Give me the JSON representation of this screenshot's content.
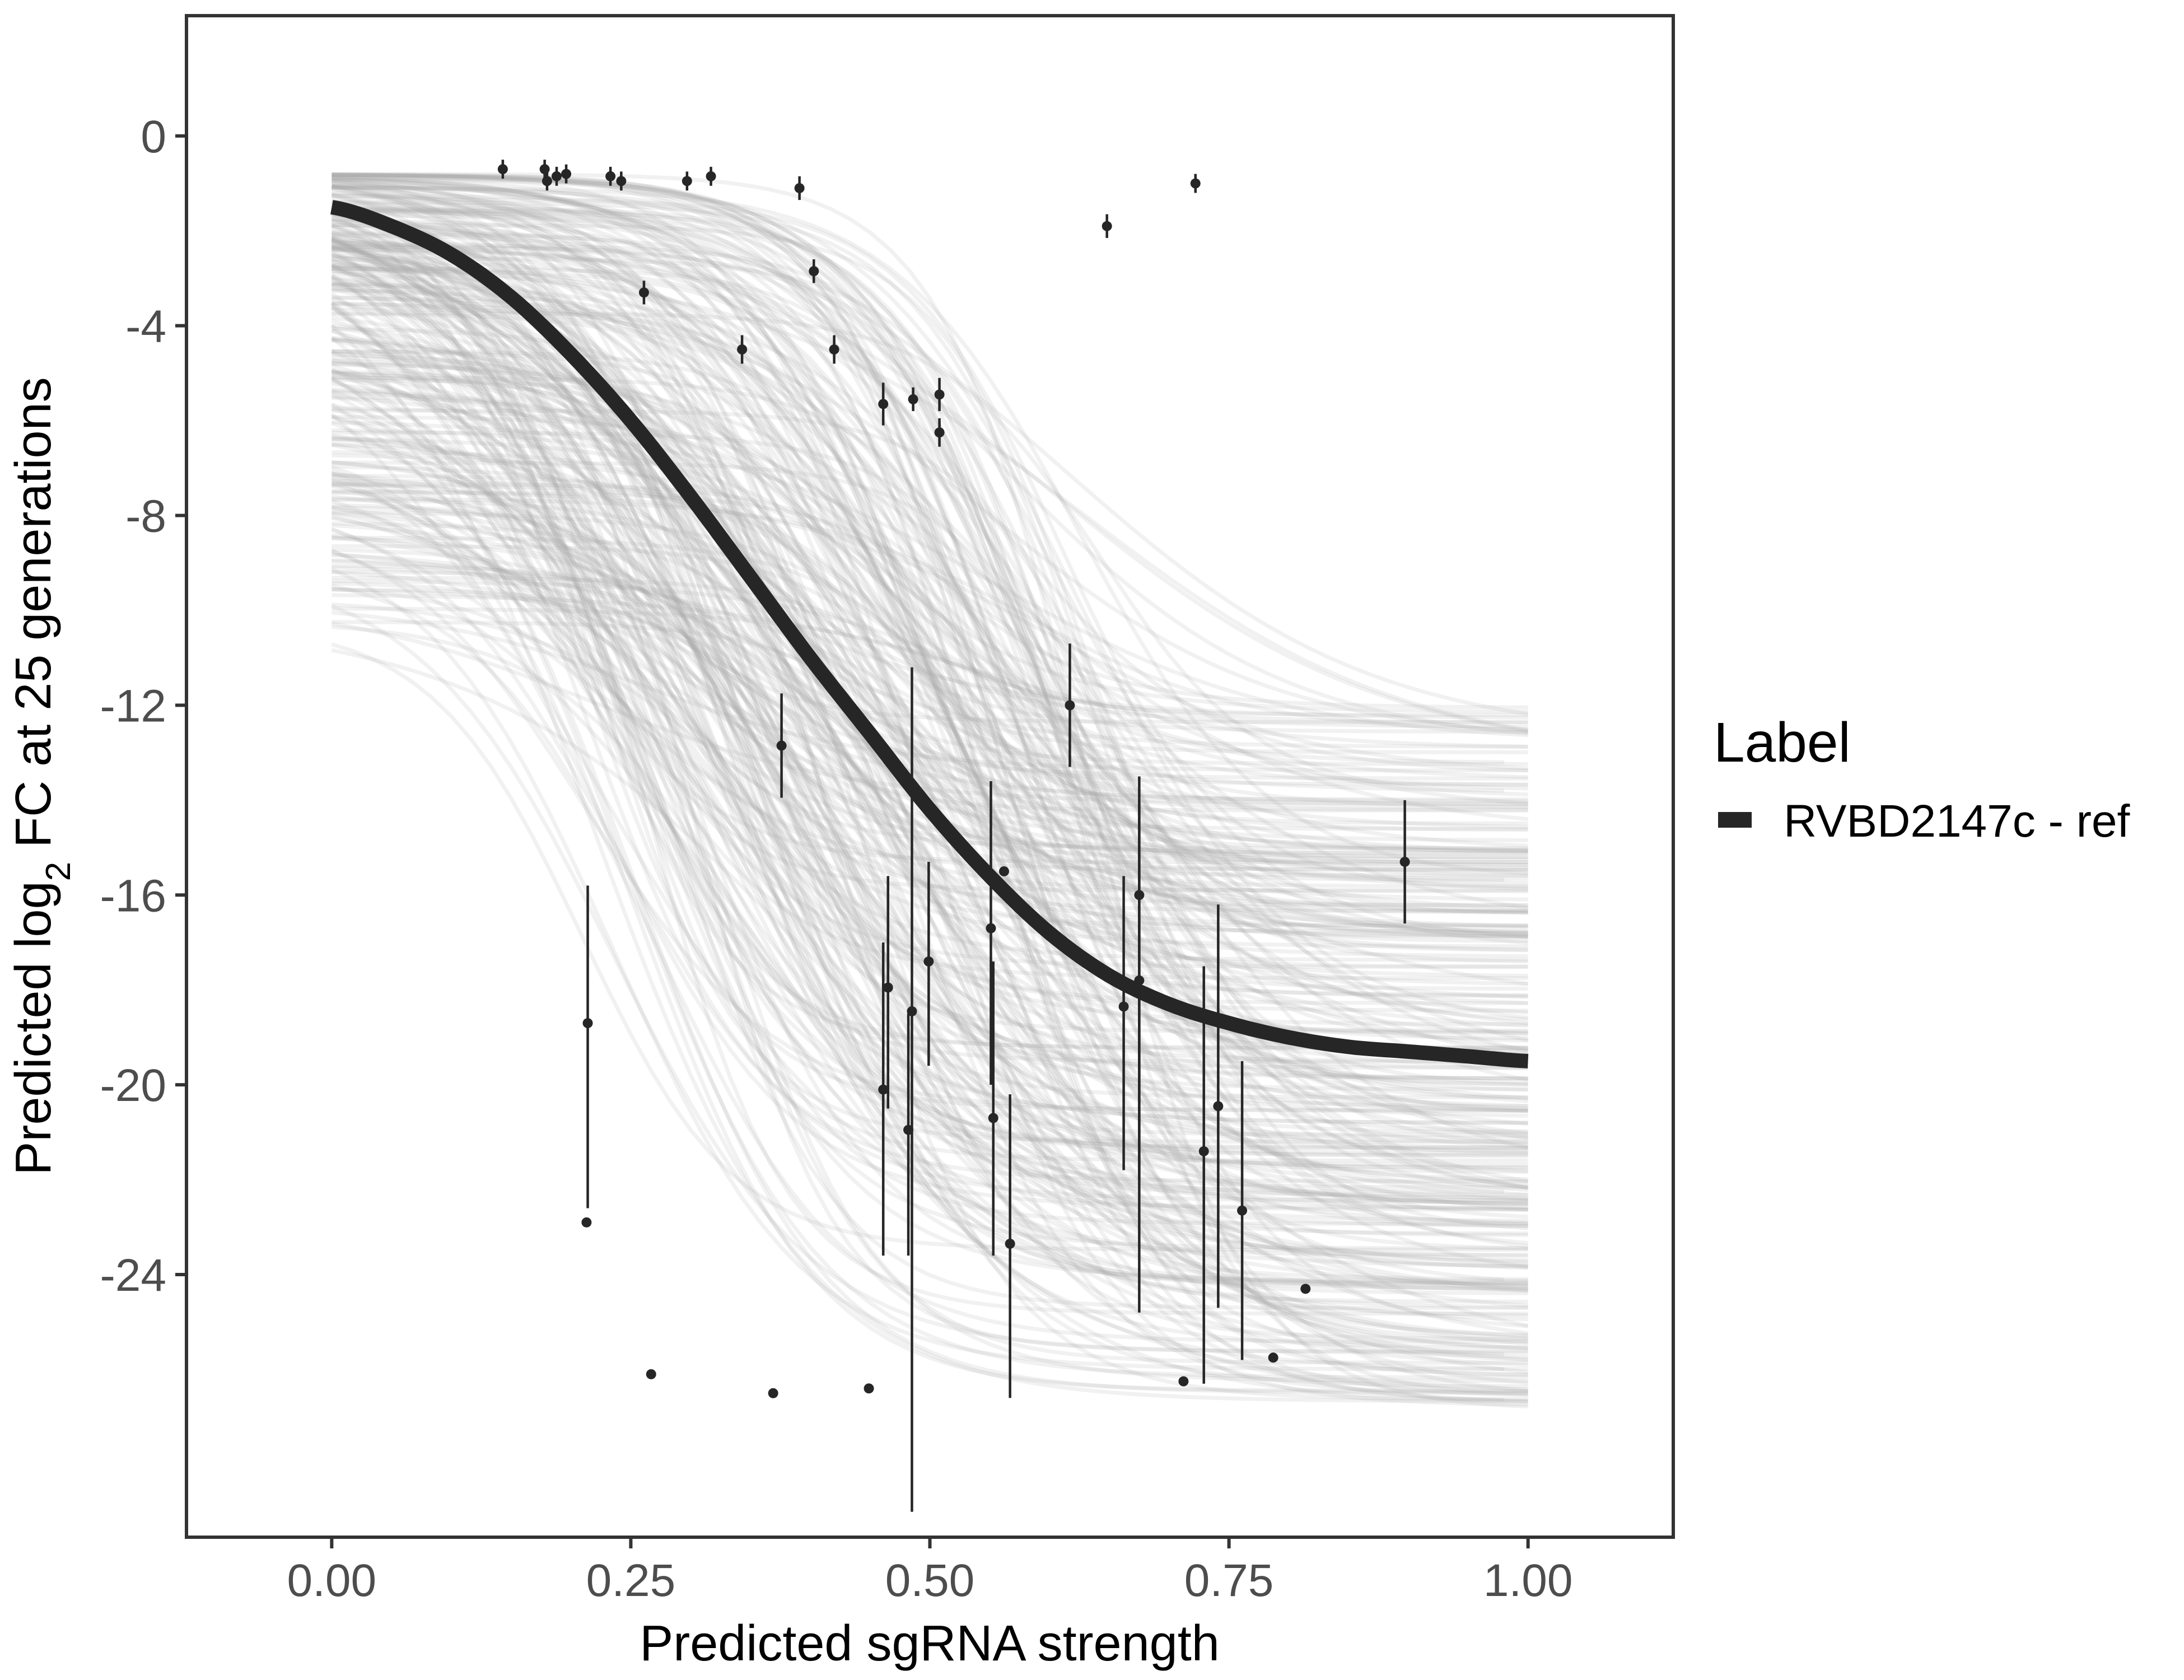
{
  "chart_data": {
    "type": "line",
    "xlabel": "Predicted sgRNA strength",
    "ylabel_prefix": "Predicted  log",
    "ylabel_subscript": "2",
    "ylabel_suffix": " FC at 25 generations",
    "xlim": [
      -0.12,
      1.12
    ],
    "ylim": [
      -29.5,
      2.5
    ],
    "x_ticks": [
      0.0,
      0.25,
      0.5,
      0.75,
      1.0
    ],
    "x_tick_labels": [
      "0.00",
      "0.25",
      "0.50",
      "0.75",
      "1.00"
    ],
    "y_ticks": [
      0,
      -4,
      -8,
      -12,
      -16,
      -20,
      -24
    ],
    "y_tick_labels": [
      "0",
      "-4",
      "-8",
      "-12",
      "-16",
      "-20",
      "-24"
    ],
    "grid": false,
    "legend_position": "right",
    "legend": {
      "title": "Label",
      "entries": [
        {
          "name": "RVBD2147c - ref",
          "color": "#262626"
        }
      ]
    },
    "series": [
      {
        "name": "RVBD2147c - ref",
        "color": "#262626",
        "x": [
          0.0,
          0.05,
          0.1,
          0.15,
          0.2,
          0.25,
          0.3,
          0.35,
          0.4,
          0.45,
          0.5,
          0.55,
          0.6,
          0.65,
          0.7,
          0.75,
          0.8,
          0.85,
          0.9,
          0.95,
          1.0
        ],
        "y": [
          -1.5,
          -1.9,
          -2.5,
          -3.4,
          -4.6,
          -6.0,
          -7.6,
          -9.3,
          -11.0,
          -12.6,
          -14.2,
          -15.6,
          -16.8,
          -17.7,
          -18.3,
          -18.7,
          -19.0,
          -19.2,
          -19.3,
          -19.4,
          -19.5
        ]
      }
    ],
    "posterior_band": {
      "color": "#a8a8a8",
      "draws": 320,
      "top_start": -0.8
    },
    "points": [
      {
        "x": 0.143,
        "y": -0.7,
        "lo": -0.9,
        "hi": -0.5
      },
      {
        "x": 0.178,
        "y": -0.7,
        "lo": -0.9,
        "hi": -0.5
      },
      {
        "x": 0.18,
        "y": -0.95,
        "lo": -1.15,
        "hi": -0.75
      },
      {
        "x": 0.188,
        "y": -0.85,
        "lo": -1.05,
        "hi": -0.65
      },
      {
        "x": 0.196,
        "y": -0.8,
        "lo": -1.0,
        "hi": -0.6
      },
      {
        "x": 0.233,
        "y": -0.85,
        "lo": -1.05,
        "hi": -0.65
      },
      {
        "x": 0.242,
        "y": -0.95,
        "lo": -1.15,
        "hi": -0.75
      },
      {
        "x": 0.297,
        "y": -0.95,
        "lo": -1.15,
        "hi": -0.75
      },
      {
        "x": 0.317,
        "y": -0.85,
        "lo": -1.05,
        "hi": -0.65
      },
      {
        "x": 0.391,
        "y": -1.1,
        "lo": -1.35,
        "hi": -0.85
      },
      {
        "x": 0.722,
        "y": -1.0,
        "lo": -1.2,
        "hi": -0.8
      },
      {
        "x": 0.648,
        "y": -1.9,
        "lo": -2.15,
        "hi": -1.65
      },
      {
        "x": 0.403,
        "y": -2.85,
        "lo": -3.1,
        "hi": -2.6
      },
      {
        "x": 0.261,
        "y": -3.3,
        "lo": -3.55,
        "hi": -3.05
      },
      {
        "x": 0.343,
        "y": -4.5,
        "lo": -4.8,
        "hi": -4.2
      },
      {
        "x": 0.42,
        "y": -4.5,
        "lo": -4.8,
        "hi": -4.2
      },
      {
        "x": 0.461,
        "y": -5.65,
        "lo": -6.1,
        "hi": -5.2
      },
      {
        "x": 0.486,
        "y": -5.55,
        "lo": -5.8,
        "hi": -5.3
      },
      {
        "x": 0.508,
        "y": -5.45,
        "lo": -5.8,
        "hi": -5.1
      },
      {
        "x": 0.508,
        "y": -6.25,
        "lo": -6.55,
        "hi": -5.95
      },
      {
        "x": 0.617,
        "y": -12.0,
        "lo": -13.3,
        "hi": -10.7
      },
      {
        "x": 0.376,
        "y": -12.85,
        "lo": -13.95,
        "hi": -11.75
      },
      {
        "x": 0.897,
        "y": -15.3,
        "lo": -16.6,
        "hi": -14.0
      },
      {
        "x": 0.562,
        "y": -15.5
      },
      {
        "x": 0.675,
        "y": -16.0,
        "lo": -24.8,
        "hi": -13.5
      },
      {
        "x": 0.551,
        "y": -16.7,
        "lo": -20.0,
        "hi": -13.6
      },
      {
        "x": 0.499,
        "y": -17.4,
        "lo": -19.6,
        "hi": -15.3
      },
      {
        "x": 0.465,
        "y": -17.95,
        "lo": -20.5,
        "hi": -15.6
      },
      {
        "x": 0.675,
        "y": -17.8,
        "lo": -22.0,
        "hi": -14.0
      },
      {
        "x": 0.662,
        "y": -18.35,
        "lo": -21.8,
        "hi": -15.6
      },
      {
        "x": 0.485,
        "y": -18.45,
        "lo": -29.0,
        "hi": -11.2
      },
      {
        "x": 0.214,
        "y": -18.7,
        "lo": -22.6,
        "hi": -15.8
      },
      {
        "x": 0.461,
        "y": -20.1,
        "lo": -23.6,
        "hi": -17.0
      },
      {
        "x": 0.741,
        "y": -20.45,
        "lo": -24.7,
        "hi": -16.2
      },
      {
        "x": 0.553,
        "y": -20.7,
        "lo": -23.6,
        "hi": -17.4
      },
      {
        "x": 0.482,
        "y": -20.95,
        "lo": -23.6,
        "hi": -18.5
      },
      {
        "x": 0.729,
        "y": -21.4,
        "lo": -26.3,
        "hi": -17.5
      },
      {
        "x": 0.761,
        "y": -22.65,
        "lo": -25.8,
        "hi": -19.5
      },
      {
        "x": 0.213,
        "y": -22.9
      },
      {
        "x": 0.567,
        "y": -23.35,
        "lo": -26.6,
        "hi": -20.2
      },
      {
        "x": 0.814,
        "y": -24.3
      },
      {
        "x": 0.787,
        "y": -25.75
      },
      {
        "x": 0.267,
        "y": -26.1
      },
      {
        "x": 0.712,
        "y": -26.25
      },
      {
        "x": 0.449,
        "y": -26.4
      },
      {
        "x": 0.369,
        "y": -26.5
      }
    ]
  }
}
